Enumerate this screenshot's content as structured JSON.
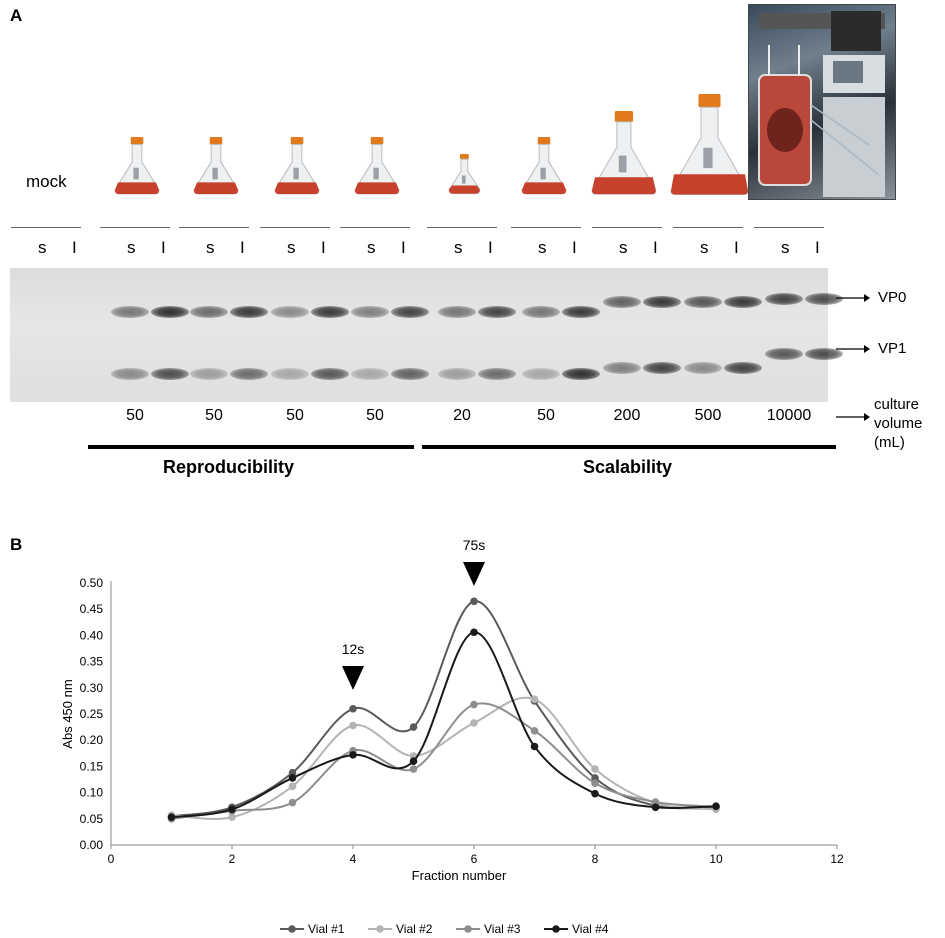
{
  "panel_a": {
    "letter": "A",
    "mock_label": "mock",
    "lanes": [
      {
        "s": "s",
        "l": "I"
      },
      {
        "s": "s",
        "l": "I"
      },
      {
        "s": "s",
        "l": "I"
      },
      {
        "s": "s",
        "l": "I"
      },
      {
        "s": "s",
        "l": "I"
      },
      {
        "s": "s",
        "l": "I"
      },
      {
        "s": "s",
        "l": "I"
      },
      {
        "s": "s",
        "l": "I"
      },
      {
        "s": "s",
        "l": "I"
      },
      {
        "s": "s",
        "l": "I"
      }
    ],
    "band_labels": {
      "vp0": "VP0",
      "vp1": "VP1"
    },
    "volumes": [
      "50",
      "50",
      "50",
      "50",
      "20",
      "50",
      "200",
      "500",
      "10000"
    ],
    "volume_label_line1": "culture",
    "volume_label_line2": "volume",
    "volume_label_line3": "(mL)",
    "groups": {
      "reproducibility": "Reproducibility",
      "scalability": "Scalability"
    },
    "colors": {
      "flask_liquid": "#c8412c",
      "cap": "#e07a1c"
    }
  },
  "panel_b": {
    "letter": "B",
    "annotations": [
      "75s",
      "12s"
    ]
  },
  "chart_data": {
    "type": "line",
    "xlabel": "Fraction number",
    "ylabel": "Abs 450 nm",
    "xlim": [
      0,
      12
    ],
    "ylim": [
      0,
      0.5
    ],
    "xticks": [
      "0",
      "2",
      "4",
      "6",
      "8",
      "10",
      "12"
    ],
    "yticks": [
      "0.00",
      "0.05",
      "0.10",
      "0.15",
      "0.20",
      "0.25",
      "0.30",
      "0.35",
      "0.40",
      "0.45",
      "0.50"
    ],
    "x": [
      1,
      2,
      3,
      4,
      5,
      6,
      7,
      8,
      9,
      10
    ],
    "series": [
      {
        "name": "Vial #1",
        "color": "#5a5a5a",
        "values": [
          0.055,
          0.072,
          0.138,
          0.26,
          0.225,
          0.465,
          0.275,
          0.128,
          0.075,
          0.072
        ]
      },
      {
        "name": "Vial #2",
        "color": "#b4b4b4",
        "values": [
          0.057,
          0.053,
          0.112,
          0.228,
          0.17,
          0.233,
          0.278,
          0.145,
          0.08,
          0.068
        ]
      },
      {
        "name": "Vial #3",
        "color": "#8e8e8e",
        "values": [
          0.05,
          0.065,
          0.081,
          0.18,
          0.145,
          0.268,
          0.218,
          0.118,
          0.082,
          0.073
        ]
      },
      {
        "name": "Vial #4",
        "color": "#1a1a1a",
        "values": [
          0.053,
          0.068,
          0.128,
          0.172,
          0.16,
          0.406,
          0.188,
          0.098,
          0.072,
          0.074
        ]
      }
    ],
    "grid": false,
    "legend_position": "bottom"
  }
}
